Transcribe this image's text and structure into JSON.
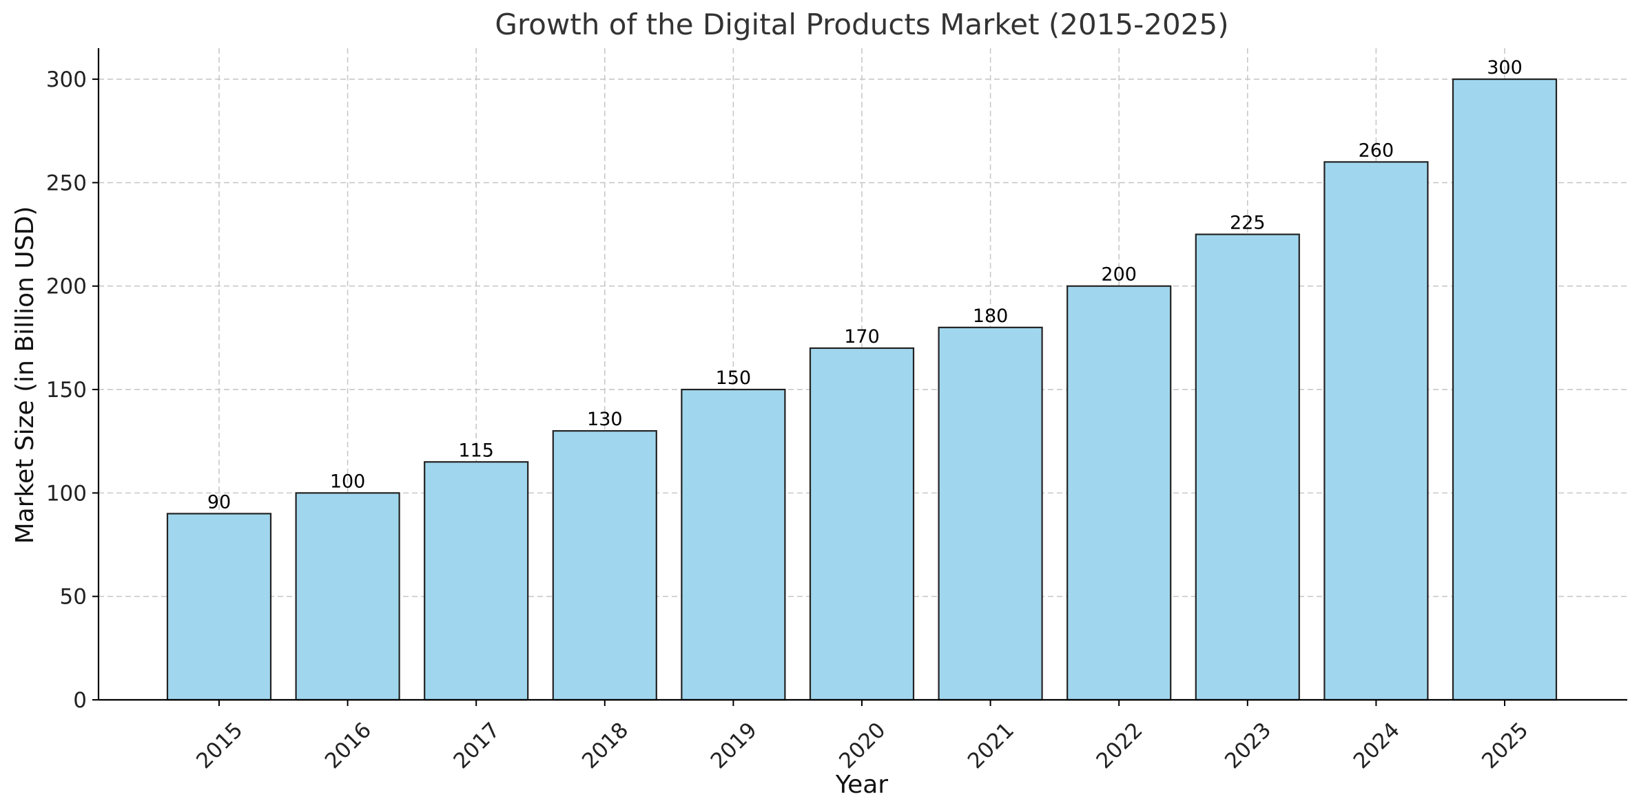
{
  "chart_data": {
    "type": "bar",
    "title": "Growth of the Digital Products Market (2015-2025)",
    "xlabel": "Year",
    "ylabel": "Market Size (in Billion USD)",
    "categories": [
      "2015",
      "2016",
      "2017",
      "2018",
      "2019",
      "2020",
      "2021",
      "2022",
      "2023",
      "2024",
      "2025"
    ],
    "values": [
      90,
      100,
      115,
      130,
      150,
      170,
      180,
      200,
      225,
      260,
      300
    ],
    "ylim": [
      0,
      315
    ],
    "yticks": [
      0,
      50,
      100,
      150,
      200,
      250,
      300
    ],
    "grid": true,
    "bar_color": "#a1d7ee",
    "bar_edge_color": "#222222"
  }
}
